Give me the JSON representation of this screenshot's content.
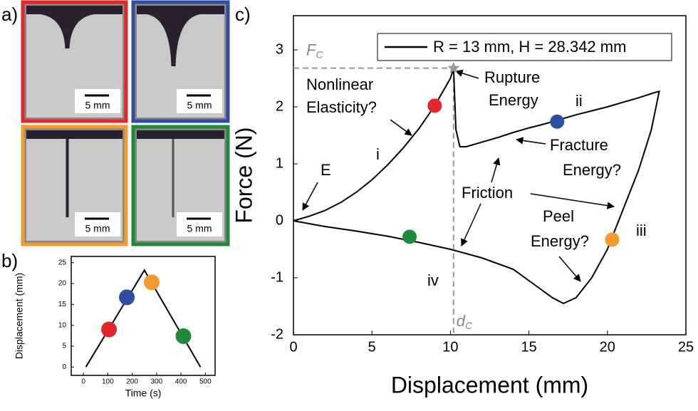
{
  "panel_labels": [
    "a)",
    "b)",
    "c)"
  ],
  "photos": [
    {
      "color": "#e3262b",
      "scale_label": "5 mm"
    },
    {
      "color": "#2f4ea2",
      "scale_label": "5 mm"
    },
    {
      "color": "#f39a2e",
      "scale_label": "5 mm"
    },
    {
      "color": "#1f8a3c",
      "scale_label": "5 mm"
    }
  ],
  "chart_data": [
    {
      "type": "line",
      "x_label": "Time (s)",
      "y_label": "Displacement (mm)",
      "x": [
        10,
        250,
        480
      ],
      "series": [
        {
          "color": "#000000",
          "values": [
            0,
            23.2,
            0
          ]
        }
      ],
      "points": [
        {
          "color": "#e3262b",
          "x": 105,
          "y": 9
        },
        {
          "color": "#2f4ea2",
          "x": 178,
          "y": 16.7
        },
        {
          "color": "#f39a2e",
          "x": 280,
          "y": 20.3
        },
        {
          "color": "#1f8a3c",
          "x": 410,
          "y": 7.4
        }
      ],
      "xlim": [
        -50,
        540
      ],
      "ylim": [
        -2,
        26.5
      ],
      "xticks": [
        0,
        100,
        200,
        300,
        400,
        500
      ],
      "yticks": [
        0,
        5,
        10,
        15,
        20,
        25
      ]
    },
    {
      "type": "line",
      "x_label": "Displacement (mm)",
      "y_label": "Force (N)",
      "x": [
        0,
        1,
        2,
        3,
        4,
        5,
        6,
        7,
        8,
        9,
        10,
        10.2,
        10.35,
        10.6,
        11,
        12,
        13,
        14,
        15,
        16,
        17,
        18,
        19,
        20,
        21,
        22,
        23,
        23.3,
        22.8,
        22,
        21,
        20,
        19,
        18,
        17.2,
        16.5,
        15,
        14,
        12,
        10,
        8,
        6,
        4,
        2,
        0
      ],
      "series": [
        {
          "name": "R = 13 mm, H = 28.342 mm",
          "color": "#000000",
          "values": [
            0,
            0.08,
            0.18,
            0.32,
            0.5,
            0.72,
            0.98,
            1.28,
            1.62,
            2.02,
            2.5,
            2.68,
            1.6,
            1.3,
            1.3,
            1.38,
            1.46,
            1.55,
            1.63,
            1.7,
            1.78,
            1.86,
            1.93,
            2.0,
            2.08,
            2.16,
            2.25,
            2.27,
            1.6,
            0.9,
            0.2,
            -0.5,
            -1.0,
            -1.35,
            -1.45,
            -1.35,
            -1.05,
            -0.85,
            -0.65,
            -0.5,
            -0.38,
            -0.27,
            -0.18,
            -0.1,
            0
          ]
        }
      ],
      "points": [
        {
          "color": "#e3262b",
          "x": 9,
          "y": 2.02
        },
        {
          "color": "#2f4ea2",
          "x": 16.8,
          "y": 1.74
        },
        {
          "color": "#f39a2e",
          "x": 20.3,
          "y": -0.33
        },
        {
          "color": "#1f8a3c",
          "x": 7.4,
          "y": -0.28
        }
      ],
      "peak": {
        "x": 10.2,
        "y": 2.68
      },
      "fc_label": [
        "F",
        "C"
      ],
      "dc_label": [
        "d",
        "C"
      ],
      "annotations": [
        "Nonlinear",
        "Elasticity?",
        "i",
        "E",
        "Rupture",
        "Energy",
        "ii",
        "Fracture",
        "Energy?",
        "Friction",
        "Peel",
        "Energy?",
        "iii",
        "iv"
      ],
      "xlim": [
        0,
        25
      ],
      "ylim": [
        -2,
        3.6
      ],
      "xticks": [
        0,
        5,
        10,
        15,
        20,
        25
      ],
      "yticks": [
        -2,
        -1,
        0,
        1,
        2,
        3
      ],
      "legend": "upper right"
    }
  ]
}
